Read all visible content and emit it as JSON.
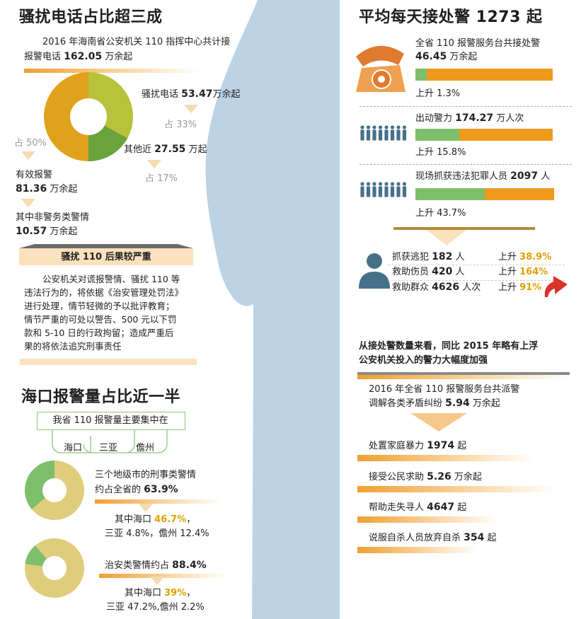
{
  "colors": {
    "accent_orange": "#ee9a1c",
    "green": "#7dbf6b",
    "olive": "#b8c23a",
    "khaki": "#e0cd7c",
    "bg_blue": "#bcd3e6"
  },
  "left": {
    "title1": "骚扰电话占比超三成",
    "intro_1": "2016 年海南省公安机关 110 指挥中心共计接",
    "intro_2_pre": "报警电话 ",
    "intro_2_num": "162.05",
    "intro_2_post": " 万余起",
    "harass_label": "骚扰电话 ",
    "harass_num": "53.47",
    "harass_unit": "万余起",
    "harass_pct": "占 33%",
    "other_label": "其他近 ",
    "other_num": "27.55",
    "other_unit": " 万起",
    "other_pct": "占 17%",
    "valid_pct": "占 50%",
    "valid_label": "有效报警",
    "valid_num": "81.36",
    "valid_unit": " 万余起",
    "nonpolice_label": "其中非警务类警情",
    "nonpolice_num": "10.57",
    "nonpolice_unit": " 万余起",
    "banner": "骚扰 110 后果较严重",
    "para": [
      "公安机关对谎报警情、骚扰 110 等",
      "违法行为的，将依据《治安管理处罚法》",
      "进行处理，情节轻微的予以批评教育；",
      "情节严重的可处以警告、500 元以下罚",
      "款和 5-10 日的行政拘留；造成严重后",
      "果的将依法追究刑事责任"
    ],
    "title2": "海口报警量占比近一半",
    "focus_label": "我省 110 报警量主要集中在",
    "cities": [
      "海口",
      "三亚",
      "儋州"
    ],
    "crim_1": "三个地级市的刑事类警情",
    "crim_2_pre": "约占全省的 ",
    "crim_2_num": "63.9%",
    "crim_detail_1_pre": "其中海口 ",
    "crim_detail_1_num": "46.7%",
    "crim_detail_2": "三亚 4.8%，儋州 12.4%",
    "sec_pre": "治安类警情约占 ",
    "sec_num": "88.4%",
    "sec_detail_1_pre": "其中海口 ",
    "sec_detail_1_num": "39%",
    "sec_detail_2": "三亚 47.2%,儋州 2.2%"
  },
  "right": {
    "title": "平均每天接处警 1273 起",
    "items": [
      {
        "l1": "全省 110 报警服务台共接处警",
        "num": "46.45",
        "unit": " 万余起",
        "rise": "上升 1.3%",
        "fill": 0.08
      },
      {
        "l1": "出动警力 ",
        "num": "174.27",
        "unit": " 万人次",
        "rise": "上升 15.8%",
        "fill": 0.32
      },
      {
        "l1": "现场抓获违法犯罪人员 ",
        "num": "2097",
        "unit": " 人",
        "rise": "上升 43.7%",
        "fill": 0.5
      }
    ],
    "stats": [
      {
        "label": "抓获逃犯 ",
        "num": "182",
        "unit": " 人",
        "rise_pre": "上升 ",
        "rise": "38.9%"
      },
      {
        "label": "救助伤员 ",
        "num": "420",
        "unit": " 人",
        "rise_pre": "上升 ",
        "rise": "164%"
      },
      {
        "label": "救助群众 ",
        "num": "4626",
        "unit": " 人次",
        "rise_pre": "上升 ",
        "rise": "91%"
      }
    ],
    "summary_1": "从接处警数量来看，同比 2015 年略有上浮",
    "summary_2": "公安机关投入的警力大幅度加强",
    "mediate_1": "2016 年全省 110 报警服务台共派警",
    "mediate_2_pre": "调解各类矛盾纠纷 ",
    "mediate_2_num": "5.94",
    "mediate_2_post": " 万余起",
    "tasks": [
      {
        "pre": "处置家庭暴力 ",
        "num": "1974",
        "post": " 起"
      },
      {
        "pre": "接受公民求助 ",
        "num": "5.26",
        "post": " 万余起"
      },
      {
        "pre": "帮助走失寻人 ",
        "num": "4647",
        "post": " 起"
      },
      {
        "pre": "说服自杀人员放弃自杀 ",
        "num": "354",
        "post": " 起"
      }
    ]
  },
  "chart_data": [
    {
      "type": "pie",
      "title": "",
      "slices": [
        {
          "name": "有效报警",
          "value": 50
        },
        {
          "name": "骚扰电话",
          "value": 33
        },
        {
          "name": "其他",
          "value": 17
        }
      ]
    },
    {
      "type": "pie",
      "title": "",
      "slices": [
        {
          "name": "三个地级市",
          "value": 63.9
        },
        {
          "name": "其他",
          "value": 36.1
        }
      ]
    },
    {
      "type": "pie",
      "title": "",
      "slices": [
        {
          "name": "三个地级市",
          "value": 88.4
        },
        {
          "name": "其他",
          "value": 11.6
        }
      ]
    }
  ]
}
